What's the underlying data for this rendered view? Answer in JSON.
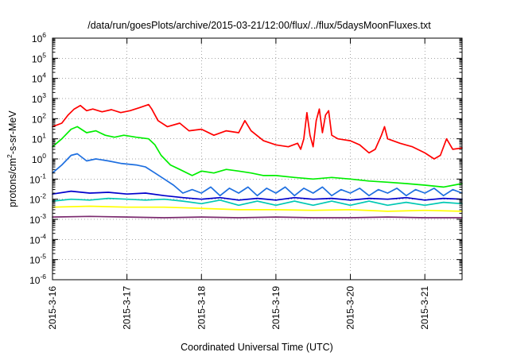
{
  "chart_data": {
    "type": "line",
    "title": "/data/run/goesPlots/archive/2015-03-21/12:00/flux/../flux/5daysMoonFluxes.txt",
    "xlabel": "Coordinated Universal Time (UTC)",
    "ylabel": {
      "base": "protons/cm",
      "sup": "2",
      "rest": "-s-sr-MeV"
    },
    "y_scale": "log",
    "ylim": [
      1e-06,
      1000000.0
    ],
    "y_ticks": [
      {
        "base": "10",
        "exp": "-6",
        "value": 1e-06
      },
      {
        "base": "10",
        "exp": "-5",
        "value": 1e-05
      },
      {
        "base": "10",
        "exp": "-4",
        "value": 0.0001
      },
      {
        "base": "10",
        "exp": "-3",
        "value": 0.001
      },
      {
        "base": "10",
        "exp": "-2",
        "value": 0.01
      },
      {
        "base": "10",
        "exp": "-1",
        "value": 0.1
      },
      {
        "base": "10",
        "exp": "0",
        "value": 1.0
      },
      {
        "base": "10",
        "exp": "1",
        "value": 10.0
      },
      {
        "base": "10",
        "exp": "2",
        "value": 100.0
      },
      {
        "base": "10",
        "exp": "3",
        "value": 1000.0
      },
      {
        "base": "10",
        "exp": "4",
        "value": 10000.0
      },
      {
        "base": "10",
        "exp": "5",
        "value": 100000.0
      },
      {
        "base": "10",
        "exp": "6",
        "value": 1000000.0
      }
    ],
    "x_ticks": [
      "2015-3-16",
      "2015-3-17",
      "2015-3-18",
      "2015-3-19",
      "2015-3-20",
      "2015-3-21"
    ],
    "xlim": [
      "2015-03-16T00:00",
      "2015-03-21T12:00"
    ],
    "grid": true,
    "series": [
      {
        "color": "#ff0000",
        "points": [
          [
            "2015-03-16T00:00",
            40
          ],
          [
            "2015-03-16T03:00",
            60
          ],
          [
            "2015-03-16T05:00",
            150
          ],
          [
            "2015-03-16T07:00",
            300
          ],
          [
            "2015-03-16T09:00",
            450
          ],
          [
            "2015-03-16T11:00",
            250
          ],
          [
            "2015-03-16T13:00",
            300
          ],
          [
            "2015-03-16T16:00",
            220
          ],
          [
            "2015-03-16T19:00",
            280
          ],
          [
            "2015-03-16T22:00",
            200
          ],
          [
            "2015-03-17T01:00",
            250
          ],
          [
            "2015-03-17T04:00",
            350
          ],
          [
            "2015-03-17T07:00",
            500
          ],
          [
            "2015-03-17T08:00",
            300
          ],
          [
            "2015-03-17T10:00",
            80
          ],
          [
            "2015-03-17T13:00",
            40
          ],
          [
            "2015-03-17T17:00",
            60
          ],
          [
            "2015-03-17T20:00",
            25
          ],
          [
            "2015-03-18T00:00",
            30
          ],
          [
            "2015-03-18T04:00",
            15
          ],
          [
            "2015-03-18T08:00",
            25
          ],
          [
            "2015-03-18T12:00",
            20
          ],
          [
            "2015-03-18T14:00",
            80
          ],
          [
            "2015-03-18T16:00",
            25
          ],
          [
            "2015-03-18T20:00",
            8
          ],
          [
            "2015-03-19T00:00",
            5
          ],
          [
            "2015-03-19T04:00",
            4
          ],
          [
            "2015-03-19T07:00",
            6
          ],
          [
            "2015-03-19T08:00",
            3
          ],
          [
            "2015-03-19T09:00",
            10
          ],
          [
            "2015-03-19T10:00",
            200
          ],
          [
            "2015-03-19T11:00",
            15
          ],
          [
            "2015-03-19T12:00",
            4
          ],
          [
            "2015-03-19T13:00",
            80
          ],
          [
            "2015-03-19T14:00",
            300
          ],
          [
            "2015-03-19T15:00",
            20
          ],
          [
            "2015-03-19T16:00",
            150
          ],
          [
            "2015-03-19T17:00",
            250
          ],
          [
            "2015-03-19T18:00",
            15
          ],
          [
            "2015-03-19T20:00",
            10
          ],
          [
            "2015-03-20T00:00",
            8
          ],
          [
            "2015-03-20T03:00",
            5
          ],
          [
            "2015-03-20T06:00",
            2
          ],
          [
            "2015-03-20T08:00",
            3
          ],
          [
            "2015-03-20T10:00",
            15
          ],
          [
            "2015-03-20T11:00",
            40
          ],
          [
            "2015-03-20T12:00",
            10
          ],
          [
            "2015-03-20T16:00",
            6
          ],
          [
            "2015-03-20T20:00",
            4
          ],
          [
            "2015-03-21T00:00",
            2
          ],
          [
            "2015-03-21T03:00",
            1
          ],
          [
            "2015-03-21T05:00",
            1.5
          ],
          [
            "2015-03-21T07:00",
            10
          ],
          [
            "2015-03-21T09:00",
            3
          ],
          [
            "2015-03-21T12:00",
            3.5
          ]
        ]
      },
      {
        "color": "#00ee00",
        "points": [
          [
            "2015-03-16T00:00",
            4
          ],
          [
            "2015-03-16T03:00",
            10
          ],
          [
            "2015-03-16T06:00",
            30
          ],
          [
            "2015-03-16T08:00",
            40
          ],
          [
            "2015-03-16T11:00",
            20
          ],
          [
            "2015-03-16T14:00",
            25
          ],
          [
            "2015-03-16T17:00",
            15
          ],
          [
            "2015-03-16T20:00",
            12
          ],
          [
            "2015-03-16T23:00",
            15
          ],
          [
            "2015-03-17T03:00",
            12
          ],
          [
            "2015-03-17T07:00",
            10
          ],
          [
            "2015-03-17T09:00",
            5
          ],
          [
            "2015-03-17T11:00",
            1.5
          ],
          [
            "2015-03-17T14:00",
            0.5
          ],
          [
            "2015-03-17T17:00",
            0.3
          ],
          [
            "2015-03-17T21:00",
            0.15
          ],
          [
            "2015-03-18T00:00",
            0.25
          ],
          [
            "2015-03-18T04:00",
            0.2
          ],
          [
            "2015-03-18T08:00",
            0.3
          ],
          [
            "2015-03-18T12:00",
            0.25
          ],
          [
            "2015-03-18T16:00",
            0.2
          ],
          [
            "2015-03-18T20:00",
            0.15
          ],
          [
            "2015-03-19T00:00",
            0.15
          ],
          [
            "2015-03-19T06:00",
            0.12
          ],
          [
            "2015-03-19T12:00",
            0.1
          ],
          [
            "2015-03-19T18:00",
            0.12
          ],
          [
            "2015-03-20T00:00",
            0.1
          ],
          [
            "2015-03-20T06:00",
            0.08
          ],
          [
            "2015-03-20T12:00",
            0.07
          ],
          [
            "2015-03-20T18:00",
            0.06
          ],
          [
            "2015-03-21T00:00",
            0.05
          ],
          [
            "2015-03-21T06:00",
            0.04
          ],
          [
            "2015-03-21T12:00",
            0.06
          ]
        ]
      },
      {
        "color": "#1e6fe0",
        "points": [
          [
            "2015-03-16T00:00",
            0.2
          ],
          [
            "2015-03-16T03:00",
            0.5
          ],
          [
            "2015-03-16T06:00",
            1.5
          ],
          [
            "2015-03-16T08:00",
            1.8
          ],
          [
            "2015-03-16T11:00",
            0.8
          ],
          [
            "2015-03-16T14:00",
            1
          ],
          [
            "2015-03-16T18:00",
            0.8
          ],
          [
            "2015-03-16T22:00",
            0.6
          ],
          [
            "2015-03-17T03:00",
            0.5
          ],
          [
            "2015-03-17T06:00",
            0.4
          ],
          [
            "2015-03-17T09:00",
            0.2
          ],
          [
            "2015-03-17T12:00",
            0.1
          ],
          [
            "2015-03-17T15:00",
            0.05
          ],
          [
            "2015-03-17T18:00",
            0.02
          ],
          [
            "2015-03-17T21:00",
            0.03
          ],
          [
            "2015-03-18T00:00",
            0.02
          ],
          [
            "2015-03-18T03:00",
            0.04
          ],
          [
            "2015-03-18T06:00",
            0.015
          ],
          [
            "2015-03-18T09:00",
            0.035
          ],
          [
            "2015-03-18T12:00",
            0.02
          ],
          [
            "2015-03-18T15:00",
            0.04
          ],
          [
            "2015-03-18T18:00",
            0.015
          ],
          [
            "2015-03-18T21:00",
            0.035
          ],
          [
            "2015-03-19T00:00",
            0.02
          ],
          [
            "2015-03-19T03:00",
            0.04
          ],
          [
            "2015-03-19T06:00",
            0.015
          ],
          [
            "2015-03-19T09:00",
            0.035
          ],
          [
            "2015-03-19T12:00",
            0.02
          ],
          [
            "2015-03-19T15:00",
            0.04
          ],
          [
            "2015-03-19T18:00",
            0.015
          ],
          [
            "2015-03-19T21:00",
            0.03
          ],
          [
            "2015-03-20T00:00",
            0.02
          ],
          [
            "2015-03-20T03:00",
            0.035
          ],
          [
            "2015-03-20T06:00",
            0.015
          ],
          [
            "2015-03-20T09:00",
            0.03
          ],
          [
            "2015-03-20T12:00",
            0.02
          ],
          [
            "2015-03-20T15:00",
            0.035
          ],
          [
            "2015-03-20T18:00",
            0.015
          ],
          [
            "2015-03-20T21:00",
            0.03
          ],
          [
            "2015-03-21T00:00",
            0.02
          ],
          [
            "2015-03-21T03:00",
            0.035
          ],
          [
            "2015-03-21T06:00",
            0.015
          ],
          [
            "2015-03-21T09:00",
            0.03
          ],
          [
            "2015-03-21T12:00",
            0.02
          ]
        ]
      },
      {
        "color": "#0000cc",
        "points": [
          [
            "2015-03-16T00:00",
            0.018
          ],
          [
            "2015-03-16T06:00",
            0.025
          ],
          [
            "2015-03-16T12:00",
            0.02
          ],
          [
            "2015-03-16T18:00",
            0.022
          ],
          [
            "2015-03-17T00:00",
            0.018
          ],
          [
            "2015-03-17T06:00",
            0.02
          ],
          [
            "2015-03-17T12:00",
            0.015
          ],
          [
            "2015-03-17T18:00",
            0.012
          ],
          [
            "2015-03-18T00:00",
            0.01
          ],
          [
            "2015-03-18T06:00",
            0.012
          ],
          [
            "2015-03-18T12:00",
            0.009
          ],
          [
            "2015-03-18T18:00",
            0.011
          ],
          [
            "2015-03-19T00:00",
            0.009
          ],
          [
            "2015-03-19T06:00",
            0.012
          ],
          [
            "2015-03-19T12:00",
            0.01
          ],
          [
            "2015-03-19T18:00",
            0.011
          ],
          [
            "2015-03-20T00:00",
            0.009
          ],
          [
            "2015-03-20T06:00",
            0.011
          ],
          [
            "2015-03-20T12:00",
            0.01
          ],
          [
            "2015-03-20T18:00",
            0.012
          ],
          [
            "2015-03-21T00:00",
            0.009
          ],
          [
            "2015-03-21T06:00",
            0.011
          ],
          [
            "2015-03-21T12:00",
            0.01
          ]
        ]
      },
      {
        "color": "#00c8b4",
        "points": [
          [
            "2015-03-16T00:00",
            0.008
          ],
          [
            "2015-03-16T06:00",
            0.01
          ],
          [
            "2015-03-16T12:00",
            0.009
          ],
          [
            "2015-03-16T18:00",
            0.011
          ],
          [
            "2015-03-17T00:00",
            0.01
          ],
          [
            "2015-03-17T06:00",
            0.009
          ],
          [
            "2015-03-17T12:00",
            0.01
          ],
          [
            "2015-03-17T18:00",
            0.008
          ],
          [
            "2015-03-18T00:00",
            0.006
          ],
          [
            "2015-03-18T06:00",
            0.009
          ],
          [
            "2015-03-18T12:00",
            0.005
          ],
          [
            "2015-03-18T18:00",
            0.008
          ],
          [
            "2015-03-19T00:00",
            0.005
          ],
          [
            "2015-03-19T06:00",
            0.008
          ],
          [
            "2015-03-19T12:00",
            0.005
          ],
          [
            "2015-03-19T18:00",
            0.008
          ],
          [
            "2015-03-20T00:00",
            0.005
          ],
          [
            "2015-03-20T06:00",
            0.008
          ],
          [
            "2015-03-20T12:00",
            0.005
          ],
          [
            "2015-03-20T18:00",
            0.007
          ],
          [
            "2015-03-21T00:00",
            0.005
          ],
          [
            "2015-03-21T06:00",
            0.007
          ],
          [
            "2015-03-21T12:00",
            0.006
          ]
        ]
      },
      {
        "color": "#ffff00",
        "points": [
          [
            "2015-03-16T00:00",
            0.004
          ],
          [
            "2015-03-16T12:00",
            0.0045
          ],
          [
            "2015-03-17T00:00",
            0.004
          ],
          [
            "2015-03-17T12:00",
            0.004
          ],
          [
            "2015-03-18T00:00",
            0.0035
          ],
          [
            "2015-03-18T12:00",
            0.003
          ],
          [
            "2015-03-19T00:00",
            0.003
          ],
          [
            "2015-03-19T12:00",
            0.0028
          ],
          [
            "2015-03-20T00:00",
            0.003
          ],
          [
            "2015-03-20T12:00",
            0.0025
          ],
          [
            "2015-03-21T00:00",
            0.0028
          ],
          [
            "2015-03-21T12:00",
            0.0025
          ]
        ]
      },
      {
        "color": "#7a2a6e",
        "points": [
          [
            "2015-03-16T00:00",
            0.0013
          ],
          [
            "2015-03-16T12:00",
            0.0014
          ],
          [
            "2015-03-17T00:00",
            0.0013
          ],
          [
            "2015-03-17T12:00",
            0.0012
          ],
          [
            "2015-03-18T00:00",
            0.0013
          ],
          [
            "2015-03-18T12:00",
            0.0012
          ],
          [
            "2015-03-19T00:00",
            0.0013
          ],
          [
            "2015-03-19T12:00",
            0.0012
          ],
          [
            "2015-03-20T00:00",
            0.0012
          ],
          [
            "2015-03-20T12:00",
            0.0013
          ],
          [
            "2015-03-21T00:00",
            0.0012
          ],
          [
            "2015-03-21T12:00",
            0.0012
          ]
        ]
      }
    ]
  }
}
